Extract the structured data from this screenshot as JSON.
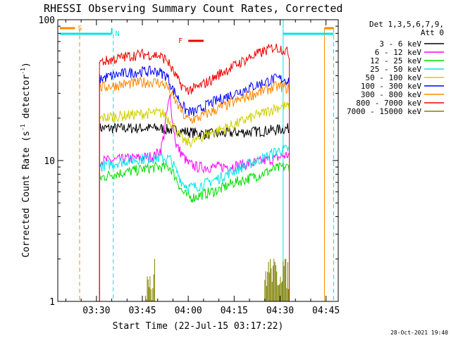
{
  "chart_data": {
    "type": "line",
    "title": "RHESSI Observing Summary Count Rates, Corrected",
    "xlabel": "Start Time (22-Jul-15 03:17:22)",
    "ylabel_main": "Corrected Count Rate (s",
    "ylabel_sup1": "-1",
    "ylabel_mid": " detector",
    "ylabel_sup2": "-1",
    "ylabel_end": ")",
    "timestamp": "28-Oct-2021 19:40",
    "y_scale": "log",
    "ylim": [
      1,
      100
    ],
    "xlim": [
      17.37,
      109
    ],
    "x_unit": "minutes after 03:00 UT",
    "x_ticks": [
      {
        "value": 30,
        "label": "03:30"
      },
      {
        "value": 45,
        "label": "03:45"
      },
      {
        "value": 60,
        "label": "04:00"
      },
      {
        "value": 75,
        "label": "04:15"
      },
      {
        "value": 90,
        "label": "04:30"
      },
      {
        "value": 105,
        "label": "04:45"
      }
    ],
    "y_ticks": [
      {
        "value": 1,
        "label": "1"
      },
      {
        "value": 10,
        "label": "10"
      },
      {
        "value": 100,
        "label": "100"
      }
    ],
    "legend_header": [
      "Det 1,3,5,6,7,9,",
      "Att 0"
    ],
    "legend_position": "right",
    "series": [
      {
        "name": "3 - 6 keV",
        "color": "#000000",
        "x": [
          31,
          40,
          50,
          55,
          58,
          60,
          62,
          65,
          70,
          75,
          80,
          85,
          88,
          91,
          93
        ],
        "y": [
          17,
          17,
          17,
          16.5,
          16.2,
          16,
          15.8,
          15.5,
          15.5,
          15.8,
          16,
          16.3,
          16.5,
          16.8,
          17
        ]
      },
      {
        "name": "6 - 12 keV",
        "color": "#ff00ff",
        "x": [
          31,
          35,
          40,
          45,
          49,
          51,
          52,
          53,
          54,
          55,
          56,
          58,
          60,
          63,
          65,
          70,
          75,
          80,
          85,
          88,
          91,
          93
        ],
        "y": [
          10,
          10,
          10.3,
          10.5,
          10.8,
          12,
          15,
          22,
          28,
          18,
          13,
          11,
          9.5,
          9,
          9,
          9,
          9.2,
          9.5,
          10,
          10.3,
          10.8,
          11
        ]
      },
      {
        "name": "12 - 25 keV",
        "color": "#00dd00",
        "x": [
          31,
          35,
          40,
          45,
          50,
          54,
          56,
          58,
          60,
          62,
          65,
          70,
          75,
          80,
          85,
          88,
          91,
          93
        ],
        "y": [
          7.5,
          8,
          8.3,
          8.7,
          9,
          9,
          7.5,
          6,
          5.5,
          5.5,
          5.8,
          6.2,
          7,
          7.5,
          8.2,
          8.7,
          9,
          9
        ]
      },
      {
        "name": "25 - 50 keV",
        "color": "#00e5e5",
        "x": [
          31,
          35,
          40,
          45,
          50,
          54,
          56,
          58,
          60,
          62,
          65,
          70,
          75,
          80,
          85,
          88,
          91,
          93
        ],
        "y": [
          9,
          9.5,
          10,
          10.3,
          10.5,
          10.3,
          8.5,
          7,
          6.5,
          6.5,
          6.8,
          7.5,
          8.5,
          9.5,
          10.5,
          11.5,
          12,
          12
        ]
      },
      {
        "name": "50 - 100 keV",
        "color": "#d0d000",
        "x": [
          31,
          35,
          40,
          45,
          50,
          52,
          55,
          57,
          59,
          61,
          63,
          65,
          70,
          75,
          80,
          85,
          88,
          91,
          93
        ],
        "y": [
          20,
          20.5,
          21,
          21.5,
          21.8,
          21.5,
          18,
          15,
          13.5,
          13.5,
          14,
          15,
          16.5,
          18,
          20,
          22,
          23.5,
          24.5,
          24
        ]
      },
      {
        "name": "100 - 300 keV",
        "color": "#0000ff",
        "x": [
          31,
          35,
          40,
          45,
          50,
          53,
          55,
          57,
          59,
          61,
          63,
          65,
          68,
          70,
          75,
          80,
          85,
          88,
          91,
          93
        ],
        "y": [
          38,
          40,
          42,
          43,
          43,
          40,
          32,
          27,
          23,
          22,
          22.5,
          24,
          26,
          27,
          30,
          33,
          36,
          38,
          38,
          37
        ]
      },
      {
        "name": "300 - 800 keV",
        "color": "#ff8800",
        "x": [
          31,
          35,
          40,
          45,
          50,
          53,
          55,
          57,
          59,
          61,
          63,
          65,
          68,
          70,
          75,
          80,
          85,
          88,
          91,
          93
        ],
        "y": [
          33,
          34,
          35,
          36,
          36,
          34,
          28,
          24,
          20,
          19.5,
          20,
          21,
          22.5,
          23.5,
          26,
          29,
          31.5,
          33.5,
          33.5,
          32
        ]
      },
      {
        "name": "800 - 7000 keV",
        "color": "#ee0000",
        "x": [
          31,
          35,
          40,
          45,
          50,
          53,
          55,
          57,
          59,
          61,
          63,
          65,
          68,
          70,
          75,
          80,
          85,
          88,
          91,
          93
        ],
        "y": [
          50,
          52,
          55,
          57,
          56,
          52,
          43,
          36,
          32,
          32,
          33,
          35,
          38,
          41,
          47,
          54,
          60,
          64,
          62,
          57
        ]
      },
      {
        "name": "7000 - 15000 keV",
        "color": "#808000",
        "x": [
          46,
          47,
          48,
          49,
          85,
          87,
          89,
          91,
          93
        ],
        "y": [
          1.1,
          1.8,
          1.1,
          1.8,
          1.5,
          1.8,
          1.5,
          1.8,
          1.5
        ]
      }
    ],
    "annotations": [
      {
        "label": "S",
        "color": "#ff8800",
        "x_start": 18,
        "x_end": 23
      },
      {
        "label": "N",
        "color": "#00e5e5",
        "x_start": 18,
        "x_end": 35
      },
      {
        "label": "F",
        "color": "#ee0000",
        "x_start": 60,
        "x_end": 65
      }
    ]
  }
}
